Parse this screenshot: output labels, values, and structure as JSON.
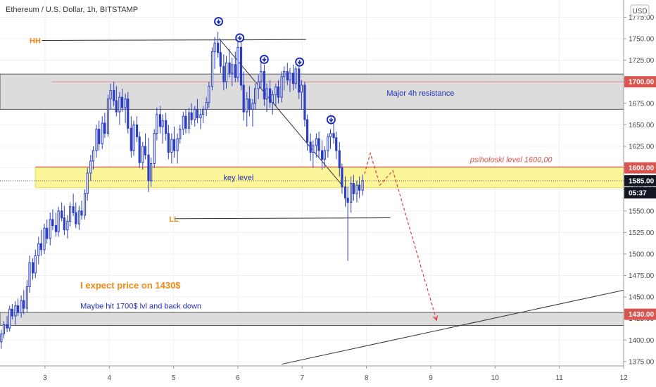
{
  "header": {
    "title": "Ethereum / U.S. Dollar, 1h, BITSTAMP",
    "currency": "USD"
  },
  "colors": {
    "up": "#2b3fc4",
    "down": "#2b3fc4",
    "zone_fill": "#d8d8d8",
    "key_fill": "#fdf48e",
    "resistance_line": "#d9534f",
    "marker": "#1f2fb5",
    "annotation_orange": "#f08a16",
    "annotation_blue": "#1f2fb5",
    "projection": "#e03a3a"
  },
  "chart_data": {
    "type": "candlestick",
    "symbol": "ETHUSD",
    "timeframe": "1h",
    "exchange": "BITSTAMP",
    "x_ticks": [
      "3",
      "4",
      "5",
      "6",
      "7",
      "8",
      "9",
      "10",
      "11",
      "12"
    ],
    "y_ticks": [
      "1375.00",
      "1400.00",
      "1425.00",
      "1450.00",
      "1475.00",
      "1500.00",
      "1525.00",
      "1550.00",
      "1575.00",
      "1600.00",
      "1625.00",
      "1650.00",
      "1675.00",
      "1700.00",
      "1725.00",
      "1750.00",
      "1775.00"
    ],
    "ylim": [
      1370,
      1795
    ],
    "xlim": [
      2.3,
      12.0
    ],
    "price_tags": [
      {
        "label": "1700.00",
        "value": 1700,
        "color": "#d9534f"
      },
      {
        "label": "1600.00",
        "value": 1600,
        "color": "#d9534f"
      },
      {
        "label": "1585.00",
        "value": 1585,
        "color": "#131722"
      },
      {
        "label": "05:37",
        "value": 1571,
        "color": "#131722"
      },
      {
        "label": "1430.00",
        "value": 1430,
        "color": "#d9534f"
      }
    ],
    "zones": [
      {
        "name": "Major 4h resistance",
        "from": 1668,
        "to": 1709,
        "x_from": 2.3,
        "x_to": 12.0,
        "fill": "#d8d8d8"
      },
      {
        "name": "key level",
        "from": 1577,
        "to": 1601,
        "x_from": 2.85,
        "x_to": 12.0,
        "fill": "#fdf48e"
      },
      {
        "name": "",
        "from": 1417,
        "to": 1432,
        "x_from": 2.3,
        "x_to": 12.0,
        "fill": "#d8d8d8"
      }
    ],
    "annotations": [
      {
        "text": "HH",
        "x": 2.76,
        "y": 1748,
        "color": "#f08a16"
      },
      {
        "text": "LL",
        "x": 4.93,
        "y": 1541,
        "color": "#f08a16"
      },
      {
        "text": "Major 4h resistance",
        "x": 8.84,
        "y": 1687,
        "color": "#1f2fb5"
      },
      {
        "text": "key level",
        "x": 6.01,
        "y": 1589,
        "color": "#1f2fb5"
      },
      {
        "text": "psiholoski level 1600,00",
        "x": 10.25,
        "y": 1610,
        "color": "#d9534f"
      },
      {
        "text": "I expect price on 1430$",
        "x": 3.55,
        "y": 1463,
        "color": "#f08a16"
      },
      {
        "text": "Maybe hit 1700$ lvl and back down",
        "x": 3.55,
        "y": 1440,
        "color": "#1f2fb5"
      }
    ],
    "markers": [
      {
        "x": 5.7,
        "y": 1770
      },
      {
        "x": 6.03,
        "y": 1751
      },
      {
        "x": 6.41,
        "y": 1726
      },
      {
        "x": 6.96,
        "y": 1723
      },
      {
        "x": 7.45,
        "y": 1656
      }
    ],
    "lines": [
      {
        "name": "HH",
        "x1": 2.95,
        "y1": 1748,
        "x2": 7.06,
        "y2": 1749,
        "color": "#333333"
      },
      {
        "name": "LL",
        "x1": 5.02,
        "y1": 1541,
        "x2": 8.37,
        "y2": 1542,
        "color": "#333333"
      },
      {
        "name": "diagonal",
        "x1": 5.71,
        "y1": 1750,
        "x2": 7.62,
        "y2": 1580,
        "color": "#333333"
      },
      {
        "name": "trendline",
        "x1": 6.68,
        "y1": 1372,
        "x2": 12.0,
        "y2": 1458,
        "color": "#333333"
      },
      {
        "name": "resistance",
        "x1": 3.1,
        "y1": 1700,
        "x2": 12.0,
        "y2": 1700,
        "color": "#e08a8a"
      },
      {
        "name": "psych",
        "x1": 2.85,
        "y1": 1601,
        "x2": 12.0,
        "y2": 1601,
        "color": "#d9534f"
      }
    ],
    "projection": [
      [
        7.97,
        1593
      ],
      [
        8.06,
        1617
      ],
      [
        8.21,
        1580
      ],
      [
        8.41,
        1597
      ],
      [
        9.09,
        1423
      ]
    ],
    "ohlc": [
      [
        2.32,
        1398,
        1412,
        1390,
        1407
      ],
      [
        2.36,
        1407,
        1422,
        1402,
        1418
      ],
      [
        2.41,
        1418,
        1428,
        1409,
        1414
      ],
      [
        2.45,
        1414,
        1440,
        1410,
        1436
      ],
      [
        2.49,
        1436,
        1442,
        1424,
        1428
      ],
      [
        2.54,
        1428,
        1445,
        1418,
        1440
      ],
      [
        2.58,
        1440,
        1448,
        1428,
        1432
      ],
      [
        2.63,
        1432,
        1452,
        1426,
        1446
      ],
      [
        2.67,
        1446,
        1458,
        1430,
        1437
      ],
      [
        2.72,
        1437,
        1470,
        1432,
        1462
      ],
      [
        2.76,
        1462,
        1498,
        1455,
        1490
      ],
      [
        2.81,
        1490,
        1495,
        1470,
        1478
      ],
      [
        2.85,
        1478,
        1505,
        1472,
        1498
      ],
      [
        2.9,
        1498,
        1520,
        1488,
        1512
      ],
      [
        2.94,
        1512,
        1528,
        1498,
        1505
      ],
      [
        2.99,
        1505,
        1535,
        1500,
        1530
      ],
      [
        3.03,
        1530,
        1540,
        1512,
        1518
      ],
      [
        3.08,
        1518,
        1548,
        1510,
        1540
      ],
      [
        3.12,
        1540,
        1552,
        1528,
        1533
      ],
      [
        3.17,
        1533,
        1548,
        1520,
        1526
      ],
      [
        3.21,
        1526,
        1555,
        1520,
        1550
      ],
      [
        3.26,
        1550,
        1560,
        1538,
        1542
      ],
      [
        3.3,
        1542,
        1556,
        1522,
        1528
      ],
      [
        3.35,
        1528,
        1545,
        1518,
        1538
      ],
      [
        3.39,
        1538,
        1560,
        1532,
        1555
      ],
      [
        3.44,
        1555,
        1570,
        1544,
        1548
      ],
      [
        3.48,
        1548,
        1560,
        1530,
        1535
      ],
      [
        3.53,
        1535,
        1556,
        1528,
        1550
      ],
      [
        3.57,
        1550,
        1562,
        1540,
        1545
      ],
      [
        3.62,
        1545,
        1575,
        1540,
        1570
      ],
      [
        3.66,
        1570,
        1600,
        1562,
        1594
      ],
      [
        3.71,
        1594,
        1615,
        1585,
        1608
      ],
      [
        3.75,
        1608,
        1625,
        1598,
        1620
      ],
      [
        3.8,
        1620,
        1650,
        1612,
        1645
      ],
      [
        3.84,
        1645,
        1655,
        1620,
        1628
      ],
      [
        3.89,
        1628,
        1660,
        1622,
        1652
      ],
      [
        3.93,
        1652,
        1664,
        1635,
        1640
      ],
      [
        3.98,
        1640,
        1685,
        1636,
        1680
      ],
      [
        4.02,
        1680,
        1698,
        1668,
        1690
      ],
      [
        4.07,
        1690,
        1700,
        1672,
        1678
      ],
      [
        4.11,
        1678,
        1695,
        1660,
        1665
      ],
      [
        4.16,
        1665,
        1688,
        1650,
        1682
      ],
      [
        4.2,
        1682,
        1692,
        1665,
        1670
      ],
      [
        4.25,
        1670,
        1686,
        1652,
        1680
      ],
      [
        4.29,
        1680,
        1688,
        1640,
        1646
      ],
      [
        4.34,
        1646,
        1660,
        1612,
        1620
      ],
      [
        4.38,
        1620,
        1655,
        1614,
        1650
      ],
      [
        4.43,
        1650,
        1660,
        1630,
        1636
      ],
      [
        4.47,
        1636,
        1642,
        1600,
        1606
      ],
      [
        4.52,
        1606,
        1630,
        1598,
        1625
      ],
      [
        4.56,
        1625,
        1640,
        1610,
        1615
      ],
      [
        4.61,
        1615,
        1635,
        1572,
        1585
      ],
      [
        4.65,
        1585,
        1612,
        1578,
        1605
      ],
      [
        4.7,
        1605,
        1645,
        1600,
        1640
      ],
      [
        4.74,
        1640,
        1670,
        1632,
        1662
      ],
      [
        4.79,
        1662,
        1672,
        1640,
        1648
      ],
      [
        4.83,
        1648,
        1662,
        1628,
        1655
      ],
      [
        4.88,
        1655,
        1664,
        1632,
        1640
      ],
      [
        4.92,
        1640,
        1650,
        1610,
        1618
      ],
      [
        4.97,
        1618,
        1640,
        1605,
        1633
      ],
      [
        5.01,
        1633,
        1648,
        1612,
        1620
      ],
      [
        5.06,
        1620,
        1640,
        1605,
        1634
      ],
      [
        5.1,
        1634,
        1650,
        1628,
        1645
      ],
      [
        5.15,
        1645,
        1665,
        1638,
        1660
      ],
      [
        5.19,
        1660,
        1668,
        1640,
        1646
      ],
      [
        5.24,
        1646,
        1670,
        1640,
        1664
      ],
      [
        5.28,
        1664,
        1675,
        1650,
        1656
      ],
      [
        5.33,
        1656,
        1672,
        1648,
        1668
      ],
      [
        5.37,
        1668,
        1680,
        1652,
        1658
      ],
      [
        5.42,
        1658,
        1668,
        1645,
        1662
      ],
      [
        5.46,
        1662,
        1672,
        1652,
        1668
      ],
      [
        5.51,
        1668,
        1682,
        1660,
        1676
      ],
      [
        5.55,
        1676,
        1700,
        1670,
        1695
      ],
      [
        5.6,
        1695,
        1740,
        1690,
        1735
      ],
      [
        5.64,
        1735,
        1752,
        1715,
        1745
      ],
      [
        5.69,
        1745,
        1758,
        1728,
        1734
      ],
      [
        5.73,
        1734,
        1748,
        1710,
        1718
      ],
      [
        5.78,
        1718,
        1732,
        1690,
        1700
      ],
      [
        5.82,
        1700,
        1730,
        1692,
        1722
      ],
      [
        5.87,
        1722,
        1738,
        1705,
        1710
      ],
      [
        5.91,
        1710,
        1728,
        1695,
        1720
      ],
      [
        5.96,
        1720,
        1735,
        1700,
        1705
      ],
      [
        6.0,
        1705,
        1752,
        1700,
        1740
      ],
      [
        6.05,
        1740,
        1748,
        1690,
        1696
      ],
      [
        6.09,
        1696,
        1712,
        1655,
        1665
      ],
      [
        6.14,
        1665,
        1688,
        1648,
        1680
      ],
      [
        6.18,
        1680,
        1695,
        1660,
        1668
      ],
      [
        6.23,
        1668,
        1680,
        1648,
        1675
      ],
      [
        6.27,
        1675,
        1698,
        1668,
        1692
      ],
      [
        6.32,
        1692,
        1708,
        1680,
        1700
      ],
      [
        6.36,
        1700,
        1725,
        1692,
        1712
      ],
      [
        6.41,
        1712,
        1720,
        1672,
        1680
      ],
      [
        6.45,
        1680,
        1698,
        1665,
        1692
      ],
      [
        6.5,
        1692,
        1702,
        1670,
        1676
      ],
      [
        6.54,
        1676,
        1690,
        1662,
        1685
      ],
      [
        6.59,
        1685,
        1698,
        1672,
        1694
      ],
      [
        6.63,
        1694,
        1702,
        1675,
        1682
      ],
      [
        6.68,
        1682,
        1712,
        1676,
        1706
      ],
      [
        6.72,
        1706,
        1718,
        1690,
        1712
      ],
      [
        6.77,
        1712,
        1722,
        1696,
        1702
      ],
      [
        6.81,
        1702,
        1716,
        1688,
        1710
      ],
      [
        6.86,
        1710,
        1720,
        1690,
        1698
      ],
      [
        6.9,
        1698,
        1718,
        1692,
        1715
      ],
      [
        6.95,
        1715,
        1720,
        1680,
        1688
      ],
      [
        6.99,
        1688,
        1702,
        1668,
        1696
      ],
      [
        7.04,
        1696,
        1700,
        1648,
        1656
      ],
      [
        7.08,
        1656,
        1662,
        1620,
        1630
      ],
      [
        7.13,
        1630,
        1640,
        1608,
        1618
      ],
      [
        7.17,
        1618,
        1632,
        1600,
        1626
      ],
      [
        7.22,
        1626,
        1640,
        1612,
        1634
      ],
      [
        7.26,
        1634,
        1642,
        1612,
        1620
      ],
      [
        7.31,
        1620,
        1632,
        1598,
        1610
      ],
      [
        7.35,
        1610,
        1625,
        1600,
        1620
      ],
      [
        7.4,
        1620,
        1640,
        1612,
        1636
      ],
      [
        7.44,
        1636,
        1645,
        1622,
        1640
      ],
      [
        7.49,
        1640,
        1652,
        1628,
        1635
      ],
      [
        7.53,
        1635,
        1642,
        1610,
        1620
      ],
      [
        7.58,
        1620,
        1630,
        1590,
        1600
      ],
      [
        7.62,
        1600,
        1605,
        1570,
        1578
      ],
      [
        7.67,
        1578,
        1590,
        1555,
        1565
      ],
      [
        7.71,
        1565,
        1578,
        1492,
        1560
      ],
      [
        7.76,
        1560,
        1590,
        1548,
        1582
      ],
      [
        7.8,
        1582,
        1592,
        1562,
        1570
      ],
      [
        7.85,
        1570,
        1585,
        1560,
        1580
      ],
      [
        7.89,
        1580,
        1590,
        1565,
        1574
      ],
      [
        7.94,
        1574,
        1592,
        1568,
        1585
      ]
    ]
  }
}
